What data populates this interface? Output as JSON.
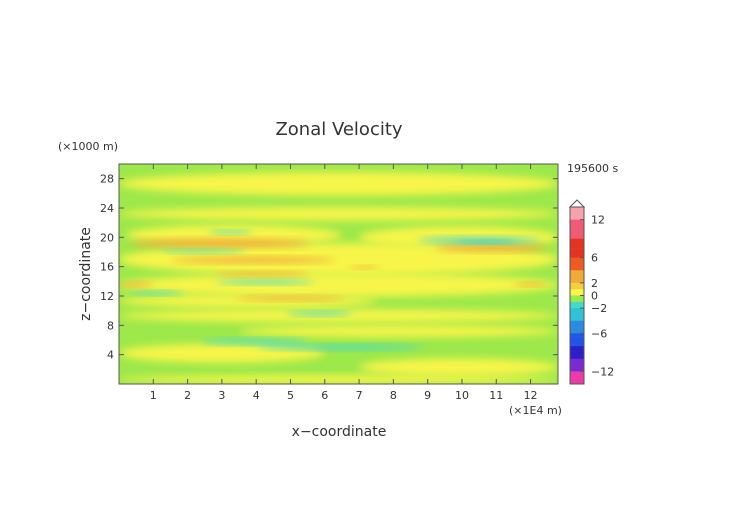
{
  "chart_data": {
    "type": "heatmap",
    "title": "Zonal Velocity",
    "time_label": "195600 s",
    "xlabel": "x−coordinate",
    "ylabel": "z−coordinate",
    "x_unit": "(×1E4 m)",
    "y_unit": "(×1000 m)",
    "xlim": [
      0,
      12.8
    ],
    "ylim": [
      0,
      30
    ],
    "x_ticks": [
      1,
      2,
      3,
      4,
      5,
      6,
      7,
      8,
      9,
      10,
      11,
      12
    ],
    "y_ticks": [
      4,
      8,
      12,
      16,
      20,
      24,
      28
    ],
    "colorbar": {
      "ticks": [
        "12",
        "6",
        "2",
        "0",
        "−2",
        "−6",
        "−12"
      ],
      "tick_values": [
        12,
        6,
        2,
        0,
        -2,
        -6,
        -12
      ],
      "range": [
        -14,
        14
      ],
      "colors": {
        "background": "#9de84a",
        "light_positive": "#f7f549",
        "mid_positive": "#f0a93b",
        "light_negative": "#46d9c6",
        "mid_negative": "#2fc2d6"
      }
    },
    "features": [
      {
        "label": "positive band",
        "x": [
          0.3,
          5.6
        ],
        "z": 19.2,
        "value": 2.5
      },
      {
        "label": "positive band",
        "x": [
          9.2,
          12.5
        ],
        "z": 18.6,
        "value": 2.5
      },
      {
        "label": "positive band",
        "x": [
          1.5,
          6.3
        ],
        "z": 16.9,
        "value": 2.2
      },
      {
        "label": "negative band",
        "x": [
          8.7,
          12.3
        ],
        "z": 19.6,
        "value": -1.8
      },
      {
        "label": "negative band",
        "x": [
          2.4,
          5.5
        ],
        "z": 5.8,
        "value": -1.5
      }
    ]
  }
}
